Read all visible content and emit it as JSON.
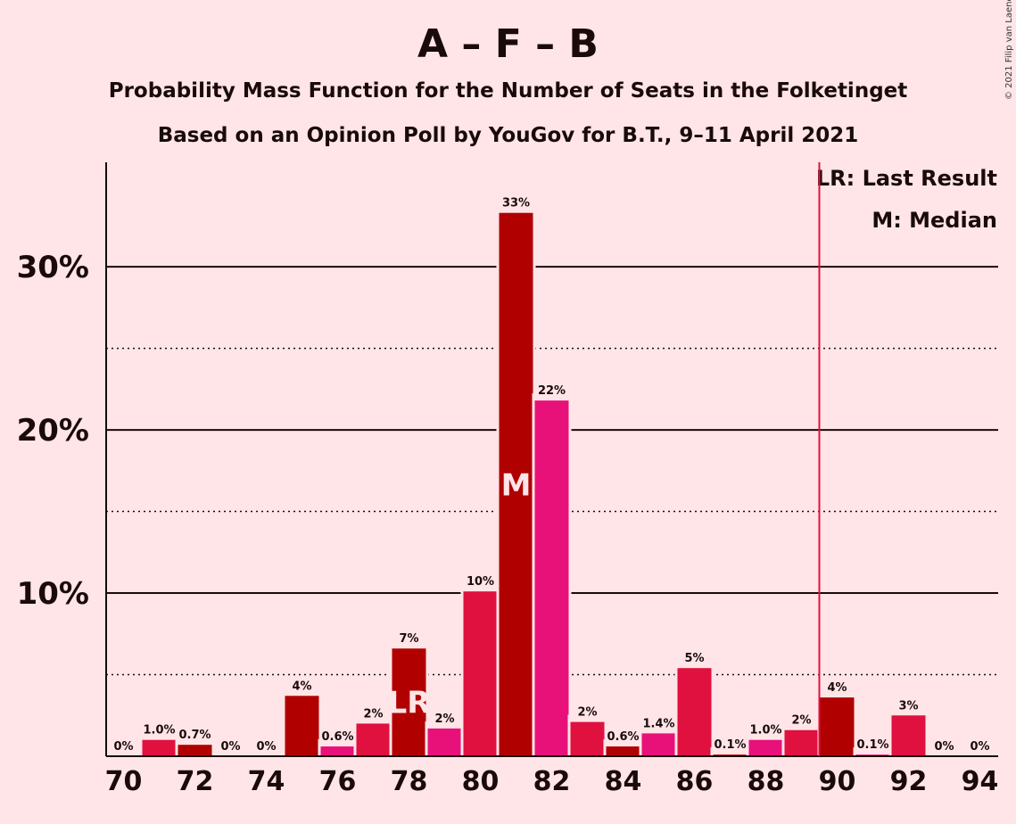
{
  "chart_data": {
    "type": "bar",
    "title": "A – F – B",
    "subtitle": "Probability Mass Function for the Number of Seats in the Folketinget",
    "subtitle2": "Based on an Opinion Poll by YouGov for B.T., 9–11 April 2021",
    "copyright": "© 2021 Filip van Laenen",
    "legend": {
      "lr": "LR: Last Result",
      "m": "M: Median",
      "placement": "top-right"
    },
    "x": [
      70,
      71,
      72,
      73,
      74,
      75,
      76,
      77,
      78,
      79,
      80,
      81,
      82,
      83,
      84,
      85,
      86,
      87,
      88,
      89,
      90,
      91,
      92,
      93,
      94
    ],
    "values": [
      0,
      1.0,
      0.7,
      0,
      0,
      3.7,
      0.6,
      2.0,
      6.6,
      1.7,
      10.1,
      33.3,
      21.8,
      2.1,
      0.6,
      1.4,
      5.4,
      0.1,
      1.0,
      1.6,
      3.6,
      0.1,
      2.5,
      0,
      0
    ],
    "data_labels": [
      "0%",
      "1.0%",
      "0.7%",
      "0%",
      "0%",
      "4%",
      "0.6%",
      "2%",
      "7%",
      "2%",
      "10%",
      "33%",
      "22%",
      "2%",
      "0.6%",
      "1.4%",
      "5%",
      "0.1%",
      "1.0%",
      "2%",
      "4%",
      "0.1%",
      "3%",
      "0%",
      "0%"
    ],
    "x_ticks": [
      70,
      72,
      74,
      76,
      78,
      80,
      82,
      84,
      86,
      88,
      90,
      92,
      94
    ],
    "y_ticks": [
      {
        "value": 10,
        "label": "10%"
      },
      {
        "value": 20,
        "label": "20%"
      },
      {
        "value": 30,
        "label": "30%"
      }
    ],
    "ylim": [
      0,
      36.4
    ],
    "minor_gridlines": [
      5,
      15,
      25
    ],
    "majority_line": 89.5,
    "last_result": 78,
    "median": 81,
    "markers": {
      "lr": "LR",
      "m": "M"
    },
    "colors": [
      "#E8117A",
      "#E0103F",
      "#B00000"
    ],
    "majority_line_color": "#E0103F"
  }
}
